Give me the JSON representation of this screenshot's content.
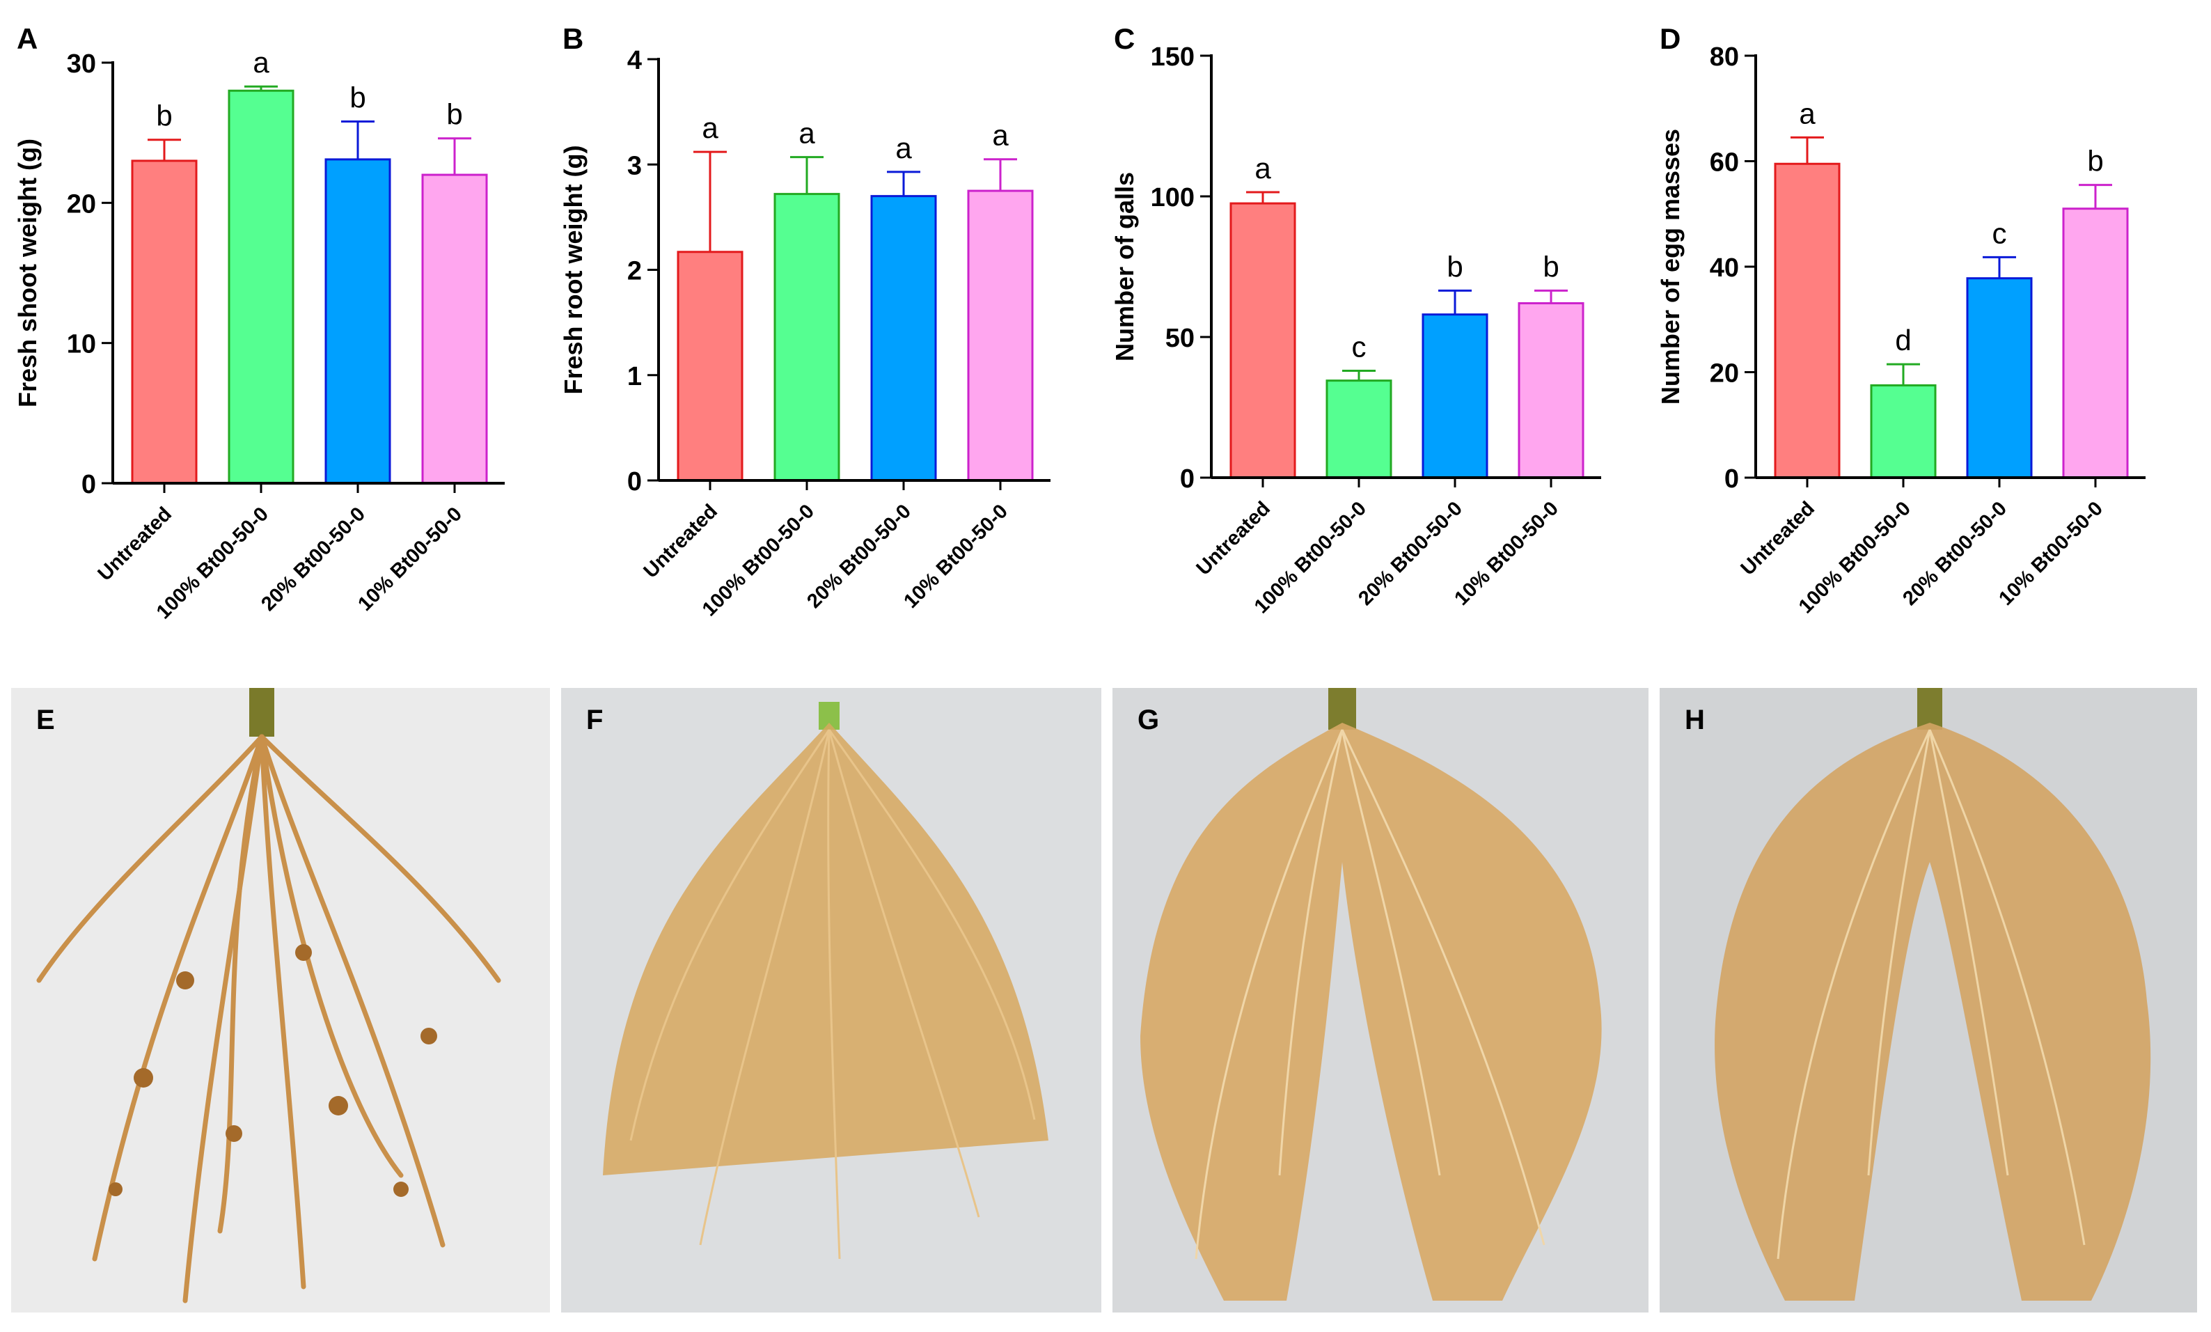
{
  "chart_data": [
    {
      "panel": "A",
      "type": "bar",
      "title": "",
      "xlabel": "",
      "ylabel": "Fresh shoot weight (g)",
      "categories": [
        "Untreated",
        "100% Bt00-50-0",
        "20% Bt00-50-0",
        "10% Bt00-50-0"
      ],
      "values": [
        23.0,
        28.0,
        23.1,
        22.0
      ],
      "errors": [
        1.5,
        0.3,
        2.7,
        2.6
      ],
      "letters": [
        "b",
        "a",
        "b",
        "b"
      ],
      "ylim": [
        0,
        30
      ],
      "yticks": [
        0,
        10,
        20,
        30
      ],
      "grid": false
    },
    {
      "panel": "B",
      "type": "bar",
      "title": "",
      "xlabel": "",
      "ylabel": "Fresh root weight (g)",
      "categories": [
        "Untreated",
        "100% Bt00-50-0",
        "20% Bt00-50-0",
        "10% Bt00-50-0"
      ],
      "values": [
        2.17,
        2.72,
        2.7,
        2.75
      ],
      "errors": [
        0.95,
        0.35,
        0.23,
        0.3
      ],
      "letters": [
        "a",
        "a",
        "a",
        "a"
      ],
      "ylim": [
        0,
        4
      ],
      "yticks": [
        0,
        1,
        2,
        3,
        4
      ],
      "grid": false
    },
    {
      "panel": "C",
      "type": "bar",
      "title": "",
      "xlabel": "",
      "ylabel": "Number of galls",
      "categories": [
        "Untreated",
        "100% Bt00-50-0",
        "20% Bt00-50-0",
        "10% Bt00-50-0"
      ],
      "values": [
        97.5,
        34.5,
        58.0,
        62.0
      ],
      "errors": [
        4.0,
        3.5,
        8.5,
        4.5
      ],
      "letters": [
        "a",
        "c",
        "b",
        "b"
      ],
      "ylim": [
        0,
        150
      ],
      "yticks": [
        0,
        50,
        100,
        150
      ],
      "grid": false
    },
    {
      "panel": "D",
      "type": "bar",
      "title": "",
      "xlabel": "",
      "ylabel": "Number of egg masses",
      "categories": [
        "Untreated",
        "100% Bt00-50-0",
        "20% Bt00-50-0",
        "10% Bt00-50-0"
      ],
      "values": [
        59.5,
        17.5,
        37.8,
        51.0
      ],
      "errors": [
        5.0,
        4.0,
        4.0,
        4.5
      ],
      "letters": [
        "a",
        "d",
        "c",
        "b"
      ],
      "ylim": [
        0,
        80
      ],
      "yticks": [
        0,
        20,
        40,
        60,
        80
      ],
      "grid": false
    }
  ],
  "series_colors": {
    "fill": [
      "#ff7f7f",
      "#55ff91",
      "#00a0ff",
      "#ffa6ef"
    ],
    "edge": [
      "#e31a1c",
      "#22aa22",
      "#0a1ad8",
      "#cc22cc"
    ]
  },
  "photos": [
    {
      "label": "E",
      "photo_bg": "#e9e9e9"
    },
    {
      "label": "F",
      "photo_bg": "#dadcde"
    },
    {
      "label": "G",
      "photo_bg": "#d7d8da"
    },
    {
      "label": "H",
      "photo_bg": "#d0d2d4"
    }
  ]
}
